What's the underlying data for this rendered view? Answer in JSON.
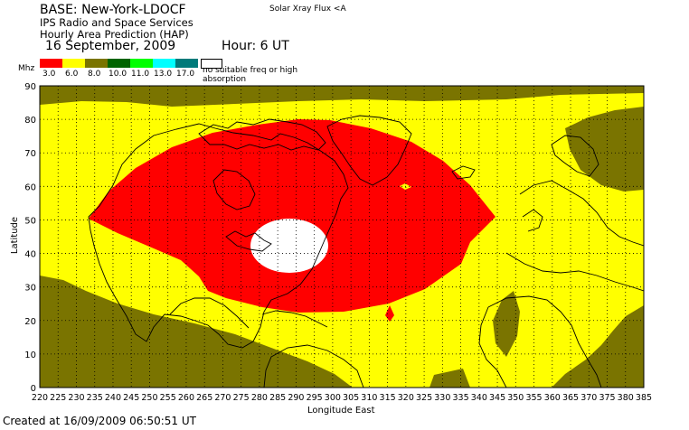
{
  "header": {
    "base": "BASE: New-York-LDOCF",
    "org": "IPS Radio and Space Services",
    "product": "Hourly Area Prediction (HAP)",
    "date": "16 September, 2009",
    "hour": "Hour:  6 UT",
    "flux_note": "Solar Xray Flux <A"
  },
  "legend": {
    "unit": "Mhz",
    "items": [
      {
        "label": "3.0",
        "color": "#ff0000"
      },
      {
        "label": "6.0",
        "color": "#ffff00"
      },
      {
        "label": "8.0",
        "color": "#7a7400"
      },
      {
        "label": "10.0",
        "color": "#006400"
      },
      {
        "label": "11.0",
        "color": "#00ff00"
      },
      {
        "label": "13.0",
        "color": "#00ffff"
      },
      {
        "label": "17.0",
        "color": "#007a7a"
      }
    ],
    "no_freq_label": "no suitable freq or high absorption",
    "no_freq_color": "#ffffff"
  },
  "map": {
    "xlabel": "Longitude East",
    "ylabel": "Latitude",
    "x_ticks": [
      "220",
      "225",
      "230",
      "235",
      "240",
      "245",
      "250",
      "255",
      "260",
      "265",
      "270",
      "275",
      "280",
      "285",
      "290",
      "295",
      "300",
      "305",
      "310",
      "315",
      "320",
      "325",
      "330",
      "335",
      "340",
      "345",
      "350",
      "355",
      "360",
      "365",
      "370",
      "375",
      "380",
      "385"
    ],
    "y_ticks": [
      "0",
      "10",
      "20",
      "30",
      "40",
      "50",
      "60",
      "70",
      "80",
      "90"
    ],
    "xlim": [
      220,
      385
    ],
    "ylim": [
      0,
      90
    ],
    "grid": true,
    "regions": {
      "red_zone": "3.0 MHz band centred over eastern North America",
      "white_zone": "no suitable freq, centred near New York"
    }
  },
  "footer": {
    "created": "Created at 16/09/2009 06:50:51 UT"
  }
}
